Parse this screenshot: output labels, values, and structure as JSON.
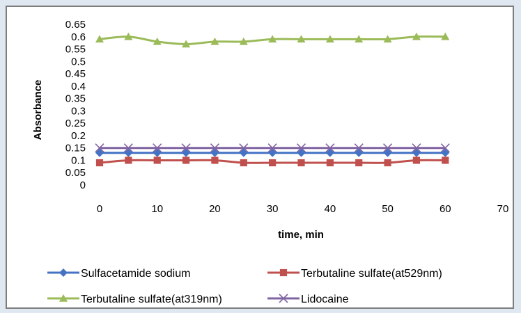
{
  "chart_data": {
    "type": "line",
    "title": "",
    "xlabel": "time, min",
    "ylabel": "Absorbance",
    "xlim": [
      0,
      70
    ],
    "ylim": [
      0,
      0.65
    ],
    "x_ticks": [
      "0",
      "10",
      "20",
      "30",
      "40",
      "50",
      "60",
      "70"
    ],
    "y_ticks": [
      "0",
      "0.05",
      "0.1",
      "0.15",
      "0.2",
      "0.25",
      "0.3",
      "0.35",
      "0.4",
      "0.45",
      "0.5",
      "0.55",
      "0.6",
      "0.65"
    ],
    "x": [
      0,
      5,
      10,
      15,
      20,
      25,
      30,
      35,
      40,
      45,
      50,
      55,
      60
    ],
    "grid": false,
    "legend_position": "bottom",
    "series": [
      {
        "name": "Sulfacetamide sodium",
        "color": "#4472c4",
        "marker": "diamond",
        "values": [
          0.13,
          0.13,
          0.13,
          0.13,
          0.13,
          0.13,
          0.13,
          0.13,
          0.13,
          0.13,
          0.13,
          0.13,
          0.13
        ]
      },
      {
        "name": "Terbutaline sulfate(at529nm)",
        "color": "#c0504d",
        "marker": "square",
        "values": [
          0.09,
          0.1,
          0.1,
          0.1,
          0.1,
          0.09,
          0.09,
          0.09,
          0.09,
          0.09,
          0.09,
          0.1,
          0.1
        ]
      },
      {
        "name": "Terbutaline sulfate(at319nm)",
        "color": "#9bbb59",
        "marker": "triangle",
        "values": [
          0.59,
          0.6,
          0.58,
          0.57,
          0.58,
          0.58,
          0.59,
          0.59,
          0.59,
          0.59,
          0.59,
          0.6,
          0.6
        ]
      },
      {
        "name": "Lidocaine",
        "color": "#8064a2",
        "marker": "x",
        "values": [
          0.15,
          0.15,
          0.15,
          0.15,
          0.15,
          0.15,
          0.15,
          0.15,
          0.15,
          0.15,
          0.15,
          0.15,
          0.15
        ]
      }
    ]
  }
}
